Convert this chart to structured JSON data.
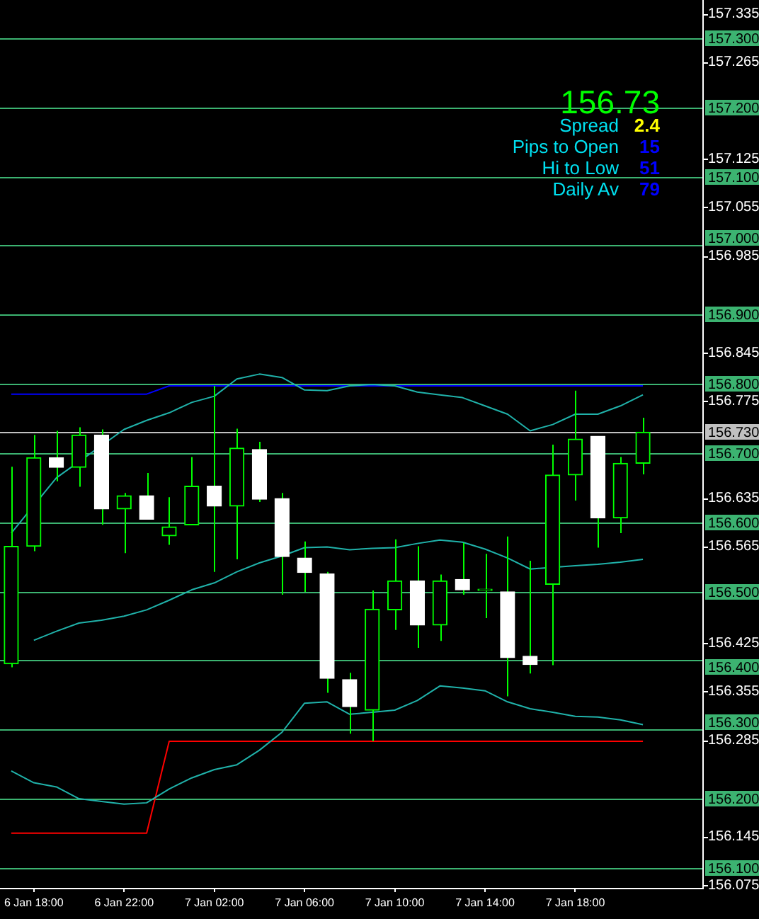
{
  "chart_data": {
    "type": "candlestick",
    "color": "#00ff00",
    "categories": [
      null,
      "6 Jan 18:00",
      null,
      null,
      null,
      "6 Jan 22:00",
      null,
      null,
      null,
      "7 Jan 02:00",
      null,
      null,
      null,
      "7 Jan 06:00",
      null,
      null,
      null,
      "7 Jan 10:00",
      null,
      null,
      null,
      "7 Jan 14:00",
      null,
      null,
      null,
      "7 Jan 18:00",
      null,
      null,
      null
    ],
    "ohlc": [
      [
        156.395,
        156.68,
        156.39,
        156.565
      ],
      [
        156.565,
        156.726,
        156.558,
        156.693
      ],
      [
        156.693,
        156.732,
        156.659,
        156.679
      ],
      [
        156.679,
        156.737,
        156.651,
        156.726
      ],
      [
        156.726,
        156.734,
        156.596,
        156.619
      ],
      [
        156.619,
        156.642,
        156.555,
        156.638
      ],
      [
        156.638,
        156.671,
        156.604,
        156.604
      ],
      [
        156.58,
        156.636,
        156.567,
        156.593
      ],
      [
        156.596,
        156.694,
        156.596,
        156.652
      ],
      [
        156.652,
        156.797,
        156.528,
        156.623
      ],
      [
        156.623,
        156.735,
        156.546,
        156.707
      ],
      [
        156.705,
        156.716,
        156.629,
        156.633
      ],
      [
        156.634,
        156.642,
        156.495,
        156.55
      ],
      [
        156.548,
        156.572,
        156.499,
        156.527
      ],
      [
        156.525,
        156.528,
        156.353,
        156.374
      ],
      [
        156.372,
        156.382,
        156.294,
        156.333
      ],
      [
        156.328,
        156.501,
        156.283,
        156.474
      ],
      [
        156.473,
        156.575,
        156.444,
        156.515
      ],
      [
        156.515,
        156.565,
        156.418,
        156.451
      ],
      [
        156.451,
        156.524,
        156.428,
        156.515
      ],
      [
        156.517,
        156.57,
        156.495,
        156.502
      ],
      [
        156.501,
        156.554,
        156.461,
        156.501
      ],
      [
        156.499,
        156.579,
        156.348,
        156.404
      ],
      [
        156.406,
        156.544,
        156.381,
        156.394
      ],
      [
        156.51,
        156.712,
        156.393,
        156.668
      ],
      [
        156.668,
        156.79,
        156.631,
        156.72
      ],
      [
        156.724,
        156.724,
        156.563,
        156.606
      ],
      [
        156.606,
        156.694,
        156.584,
        156.685
      ],
      [
        156.685,
        156.751,
        156.669,
        156.73
      ]
    ],
    "colors": [
      "#00ff00",
      "#00ff00",
      "#ffffff",
      "#00ff00",
      "#ffffff",
      "#00ff00",
      "#ffffff",
      "#00ff00",
      "#00ff00",
      "#ffffff",
      "#00ff00",
      "#ffffff",
      "#ffffff",
      "#ffffff",
      "#ffffff",
      "#ffffff",
      "#00ff00",
      "#00ff00",
      "#ffffff",
      "#00ff00",
      "#ffffff",
      "#00ff00",
      "#ffffff",
      "#ffffff",
      "#00ff00",
      "#00ff00",
      "#ffffff",
      "#00ff00",
      "#00ff00"
    ],
    "series": [
      {
        "type": "line",
        "color": "#20b2aa",
        "values": [
          156.584,
          null,
          156.664,
          null,
          null,
          156.734,
          156.747,
          156.758,
          156.773,
          156.782,
          156.807,
          156.814,
          156.809,
          156.791,
          156.79,
          156.797,
          156.799,
          156.797,
          156.788,
          156.784,
          156.78,
          156.768,
          156.756,
          156.732,
          156.741,
          156.756,
          156.756,
          156.768,
          156.784
        ]
      },
      {
        "type": "line",
        "color": "#20b2aa",
        "values": [
          null,
          156.429,
          156.442,
          156.454,
          156.458,
          156.464,
          156.473,
          156.487,
          156.502,
          156.512,
          156.528,
          156.541,
          156.551,
          156.563,
          156.564,
          156.56,
          156.562,
          156.563,
          156.569,
          156.574,
          156.571,
          156.561,
          156.548,
          156.532,
          null,
          156.537,
          156.539,
          156.542,
          156.546
        ]
      },
      {
        "type": "line",
        "color": "#20b2aa",
        "values": [
          156.24,
          156.223,
          156.217,
          156.2,
          156.196,
          156.192,
          156.194,
          156.214,
          156.23,
          156.242,
          156.249,
          156.27,
          156.296,
          156.338,
          156.34,
          156.322,
          156.325,
          156.328,
          156.342,
          156.363,
          156.36,
          156.356,
          156.34,
          156.33,
          156.325,
          156.319,
          156.318,
          156.314,
          156.307
        ]
      },
      {
        "type": "line",
        "color": "#0000ff",
        "values": [
          156.785,
          156.785,
          156.785,
          156.785,
          156.785,
          156.785,
          156.785,
          156.797,
          156.797,
          156.797,
          156.797,
          156.797,
          156.797,
          156.797,
          156.797,
          156.797,
          156.797,
          156.797,
          156.797,
          156.797,
          156.797,
          156.797,
          156.797,
          156.797,
          156.797,
          156.797,
          156.797,
          156.797,
          156.797
        ]
      },
      {
        "type": "line",
        "color": "#ff0000",
        "values": [
          156.15,
          156.15,
          156.15,
          156.15,
          156.15,
          156.15,
          156.15,
          156.283,
          156.283,
          156.283,
          156.283,
          156.283,
          156.283,
          156.283,
          156.283,
          156.283,
          156.283,
          156.283,
          156.283,
          156.283,
          156.283,
          156.283,
          156.283,
          156.283,
          156.283,
          156.283,
          156.283,
          156.283,
          156.283
        ]
      }
    ],
    "ylim": [
      156.071,
      157.355
    ],
    "yticks": [
      156.075,
      156.145,
      156.285,
      156.355,
      156.425,
      156.565,
      156.635,
      156.775,
      156.845,
      156.985,
      157.055,
      157.125,
      157.265,
      157.335
    ],
    "ref_lines": [
      {
        "axis": "y",
        "value": 156.1,
        "label": "156.100",
        "color": "#3cb371"
      },
      {
        "axis": "y",
        "value": 156.2,
        "label": "156.200",
        "color": "#3cb371"
      },
      {
        "axis": "y",
        "value": 156.3,
        "label": "156.300",
        "color": "#3cb371"
      },
      {
        "axis": "y",
        "value": 156.4,
        "label": "156.400",
        "color": "#3cb371"
      },
      {
        "axis": "y",
        "value": 156.5,
        "label": "156.500",
        "color": "#3cb371"
      },
      {
        "axis": "y",
        "value": 156.6,
        "label": "156.600",
        "color": "#3cb371"
      },
      {
        "axis": "y",
        "value": 156.7,
        "label": "156.700",
        "color": "#3cb371"
      },
      {
        "axis": "y",
        "value": 156.8,
        "label": "156.800",
        "color": "#3cb371"
      },
      {
        "axis": "y",
        "value": 156.9,
        "label": "156.900",
        "color": "#3cb371"
      },
      {
        "axis": "y",
        "value": 157.0,
        "label": "157.000",
        "color": "#3cb371"
      },
      {
        "axis": "y",
        "value": 157.1,
        "label": "157.100",
        "color": "#3cb371"
      },
      {
        "axis": "y",
        "value": 157.2,
        "label": "157.200",
        "color": "#3cb371"
      },
      {
        "axis": "y",
        "value": 157.3,
        "label": "157.300",
        "color": "#3cb371"
      },
      {
        "axis": "y",
        "value": 156.73,
        "label": "156.730",
        "color": "#c0c0c0"
      }
    ],
    "annotations": [
      "156.73",
      "Spread",
      "2.4",
      "Pips to Open",
      "15",
      "Hi to Low",
      "51",
      "Daily Av",
      "79"
    ]
  }
}
